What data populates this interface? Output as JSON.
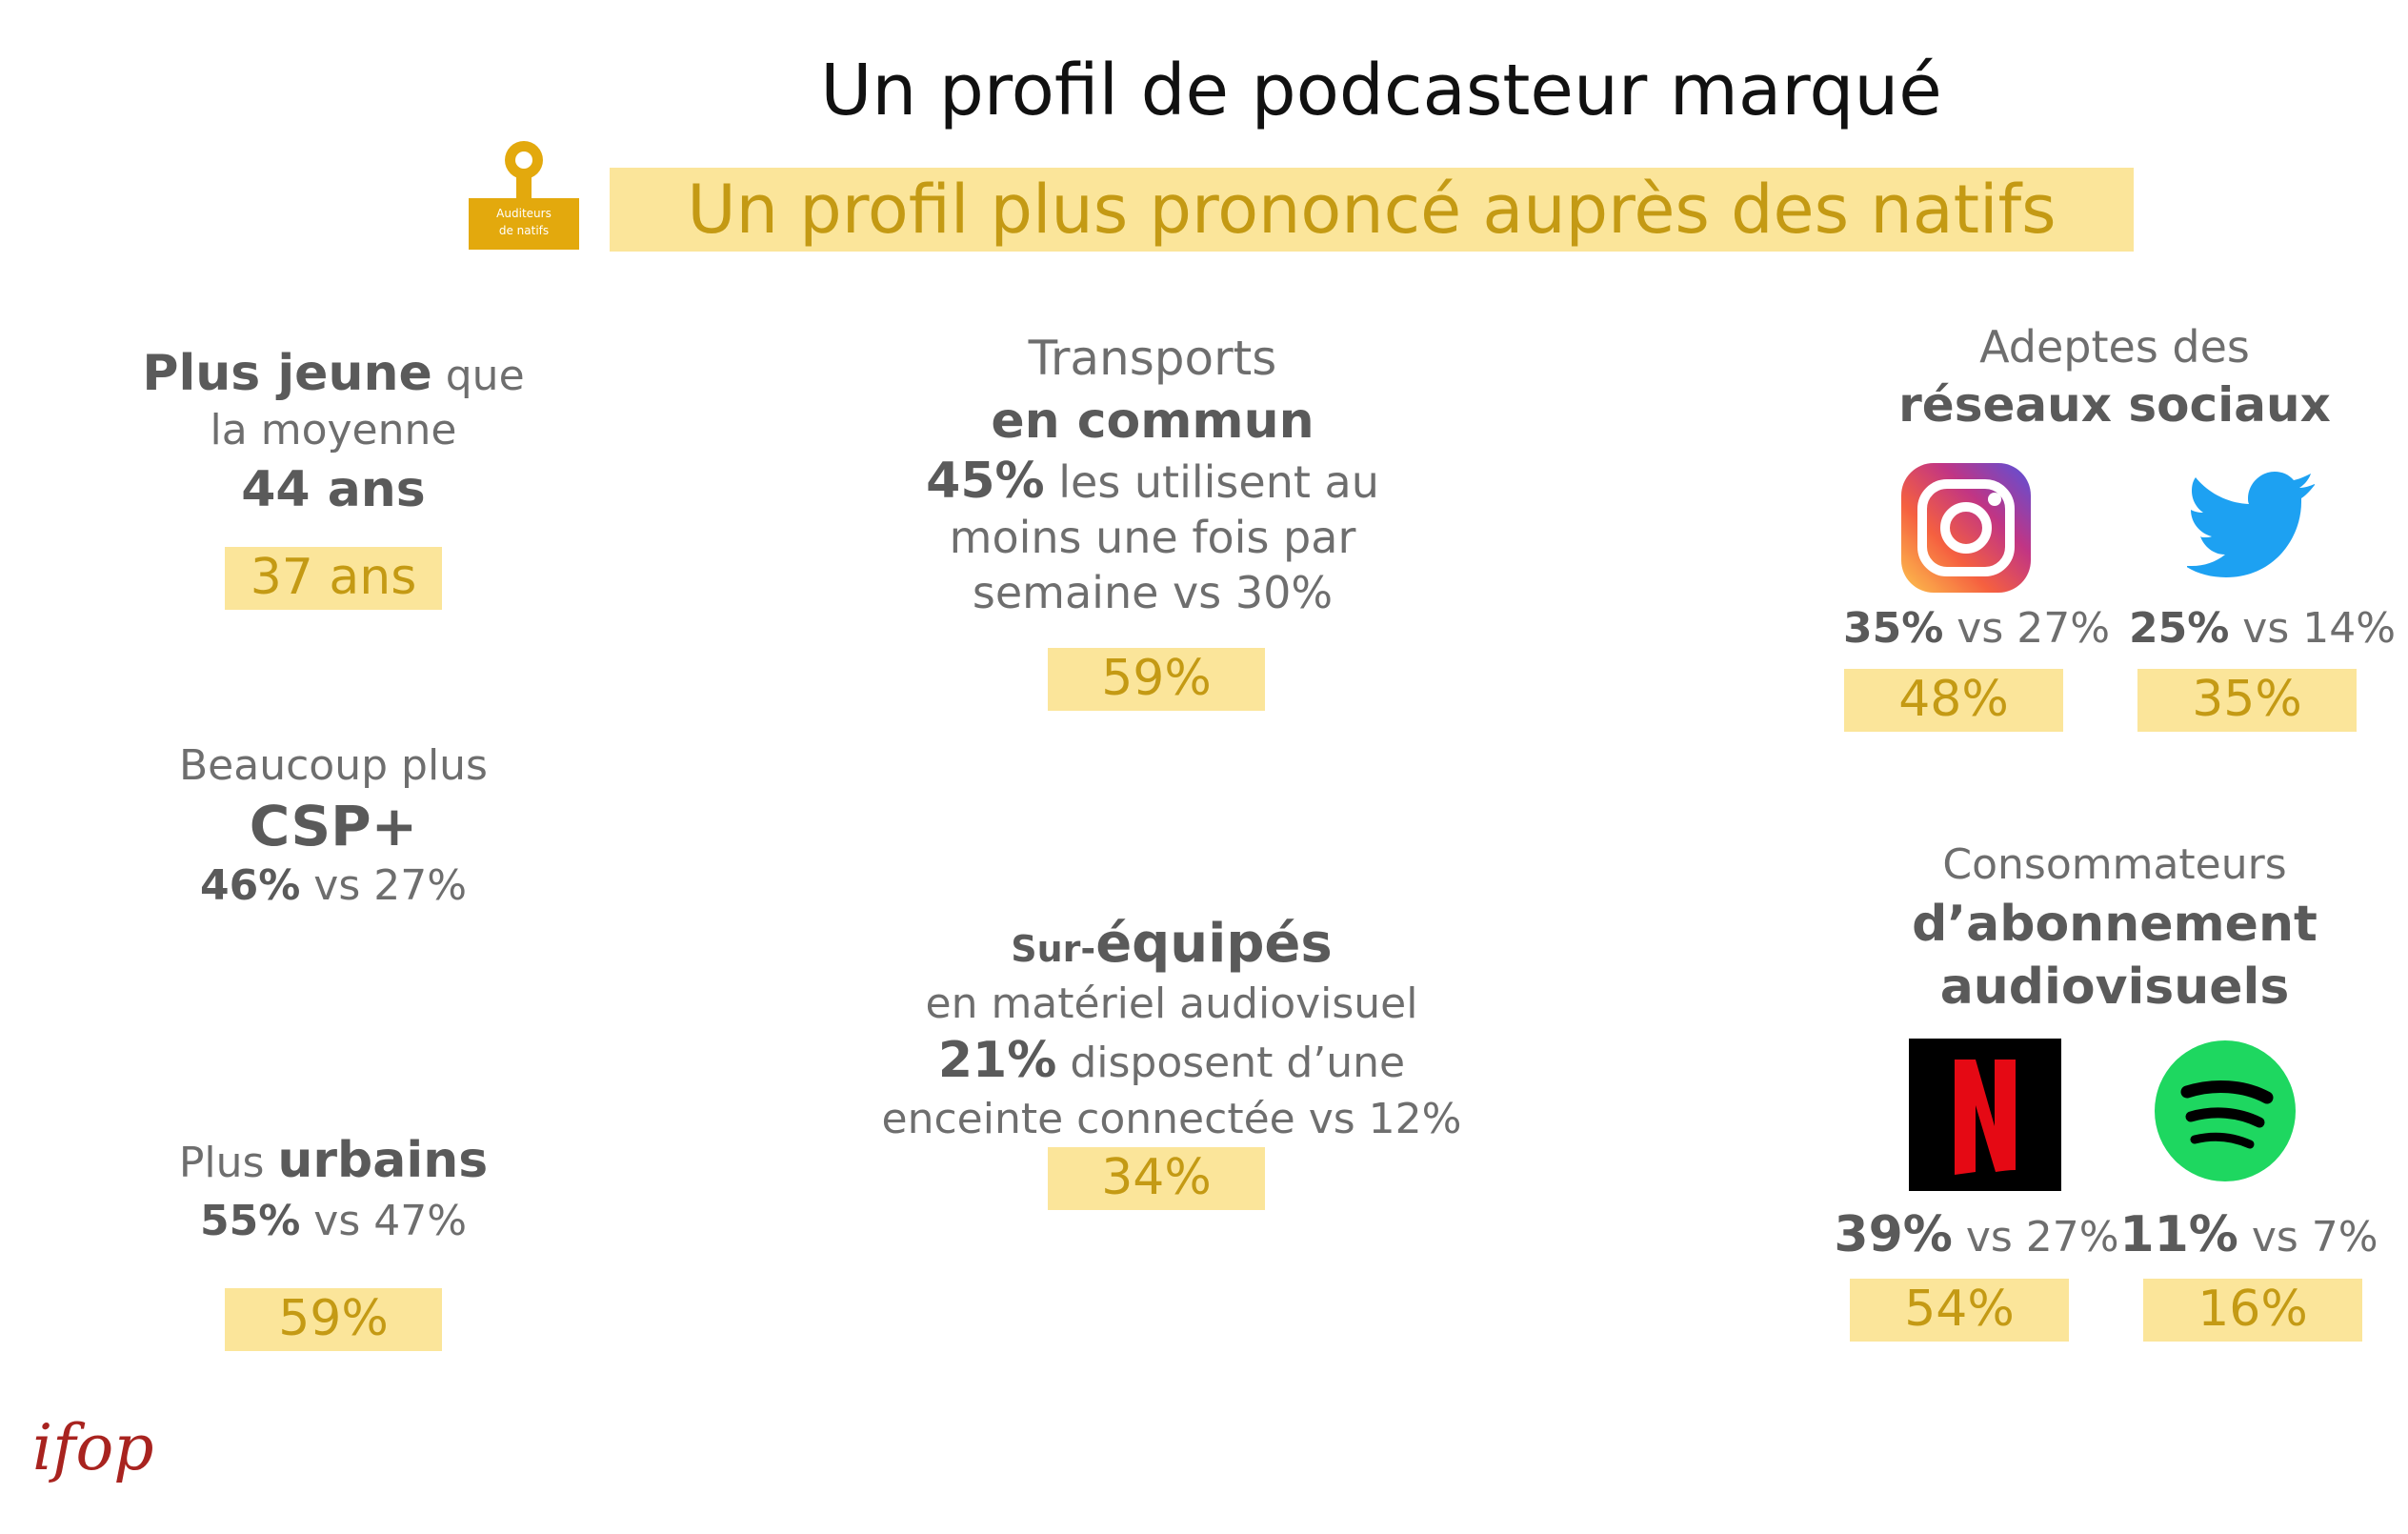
{
  "header": {
    "title": "Un profil de podcasteur marqué",
    "subtitle": "Un profil plus prononcé auprès des natifs",
    "badge_text": [
      "Auditeurs",
      "de natifs"
    ]
  },
  "left": {
    "age": {
      "label_bold": "Plus jeune",
      "label_rest": " que",
      "line2": "la moyenne",
      "value": "44 ans",
      "highlight": "37 ans"
    },
    "csp": {
      "line1": "Beaucoup plus",
      "line2": "CSP+",
      "stat_bold": "46%",
      "stat_rest": " vs 27%"
    },
    "urbains": {
      "label_plain": "Plus ",
      "label_bold": "urbains",
      "stat_bold": "55%",
      "stat_rest": " vs 47%",
      "highlight": "59%"
    }
  },
  "middle": {
    "transports": {
      "line1": "Transports",
      "line2": "en commun",
      "stat_bold": "45%",
      "stat_rest": " les utilisent au",
      "line4": "moins une fois par",
      "line5": "semaine vs 30%",
      "highlight": "59%"
    },
    "equipes": {
      "prefix": "Sur-",
      "title": "équipés",
      "line2": "en matériel audiovisuel",
      "stat_bold": "21%",
      "stat_rest": " disposent d’une",
      "line4": "enceinte connectée vs 12%",
      "highlight": "34%"
    }
  },
  "right": {
    "social": {
      "line1": "Adeptes des",
      "line2": "réseaux sociaux",
      "instagram": {
        "icon": "instagram-icon",
        "stat_bold": "35%",
        "stat_rest": " vs 27%",
        "highlight": "48%"
      },
      "twitter": {
        "icon": "twitter-icon",
        "stat_bold": "25%",
        "stat_rest": " vs 14%",
        "highlight": "35%"
      }
    },
    "subs": {
      "line1": "Consommateurs",
      "line2": "d’abonnement",
      "line3": "audiovisuels",
      "netflix": {
        "icon": "netflix-icon",
        "stat_bold": "39%",
        "stat_rest": " vs 27%",
        "highlight": "54%"
      },
      "spotify": {
        "icon": "spotify-icon",
        "stat_bold": "11%",
        "stat_rest": " vs 7%",
        "highlight": "16%"
      }
    }
  },
  "logo": {
    "text": "ifop"
  },
  "colors": {
    "highlight_bg": "#fbe59a",
    "highlight_text": "#c49a14",
    "title": "#111111",
    "body_text": "#6e6e6e",
    "logo_red": "#a8231f"
  }
}
